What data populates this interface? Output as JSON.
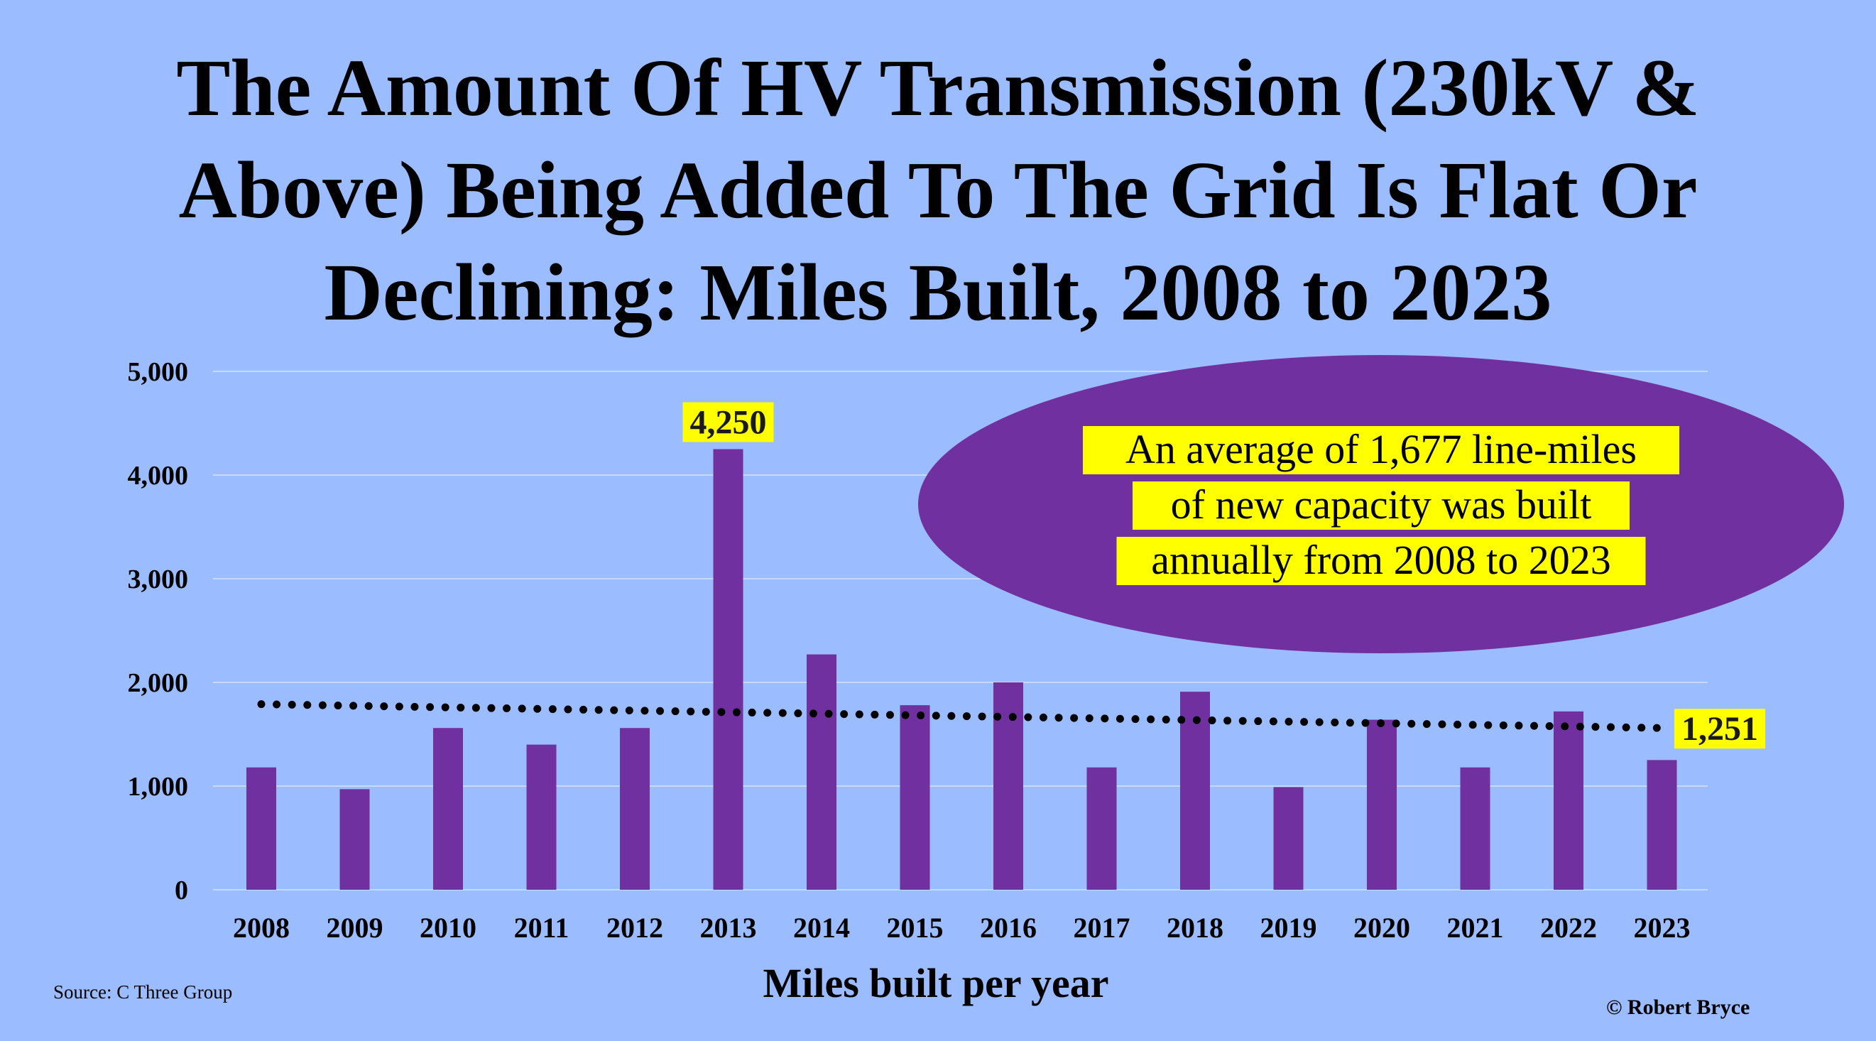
{
  "title_lines": [
    "The Amount Of HV Transmission (230kV &",
    "Above) Being Added To The Grid Is Flat Or",
    "Declining: Miles Built, 2008 to 2023"
  ],
  "source": "Source: C Three Group",
  "credit": "© Robert Bryce",
  "annotation": {
    "lines": [
      "An average of 1,677 line-miles",
      "of new capacity was built",
      "annually from 2008 to 2023"
    ],
    "ellipse_color": "#7030a0",
    "highlight_color": "#ffff00"
  },
  "chart_data": {
    "type": "bar",
    "title": "The Amount Of HV Transmission (230kV & Above) Being Added To The Grid Is Flat Or Declining: Miles Built, 2008 to 2023",
    "xlabel": "Miles built per year",
    "ylabel": "",
    "categories": [
      "2008",
      "2009",
      "2010",
      "2011",
      "2012",
      "2013",
      "2014",
      "2015",
      "2016",
      "2017",
      "2018",
      "2019",
      "2020",
      "2021",
      "2022",
      "2023"
    ],
    "values": [
      1180,
      970,
      1560,
      1400,
      1560,
      4250,
      2270,
      1780,
      2000,
      1180,
      1910,
      990,
      1640,
      1180,
      1720,
      1251
    ],
    "ylim": [
      0,
      5000
    ],
    "yticks": [
      0,
      1000,
      2000,
      3000,
      4000,
      5000
    ],
    "ytick_labels": [
      "0",
      "1,000",
      "2,000",
      "3,000",
      "4,000",
      "5,000"
    ],
    "trendline": {
      "type": "linear",
      "style": "dotted",
      "start": 1790,
      "end": 1560
    },
    "data_labels": [
      {
        "category": "2013",
        "text": "4,250"
      },
      {
        "category": "2023",
        "text": "1,251"
      }
    ],
    "bar_color": "#7030a0",
    "grid": true,
    "legend": "none"
  }
}
